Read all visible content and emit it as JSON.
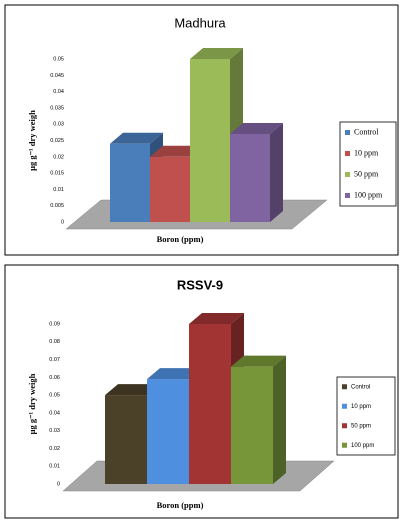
{
  "chart_data": [
    {
      "type": "bar3d",
      "title": "Madhura",
      "x_label": "Boron (ppm)",
      "y_label": "μg g⁻¹ dry weigh",
      "categories": [
        "Control",
        "10 ppm",
        "50 ppm",
        "100 ppm"
      ],
      "values": [
        0.024,
        0.02,
        0.05,
        0.027
      ],
      "colors": [
        "#4a7ebb",
        "#c0504d",
        "#9bbb59",
        "#8064a2"
      ],
      "ylim": [
        0,
        0.05
      ],
      "yticks": [
        0,
        0.005,
        0.01,
        0.015,
        0.02,
        0.025,
        0.03,
        0.035,
        0.04,
        0.045,
        0.05
      ]
    },
    {
      "type": "bar3d",
      "title": "RSSV-9",
      "x_label": "Boron (ppm)",
      "y_label": "μg g⁻¹ dry weigh",
      "categories": [
        "Control",
        "10 ppm",
        "50 ppm",
        "100 ppm"
      ],
      "values": [
        0.05,
        0.059,
        0.09,
        0.066
      ],
      "colors": [
        "#4b4128",
        "#4f8fdf",
        "#a23434",
        "#77963a"
      ],
      "ylim": [
        0,
        0.09
      ],
      "yticks": [
        0,
        0.01,
        0.02,
        0.03,
        0.04,
        0.05,
        0.06,
        0.07,
        0.08,
        0.09
      ]
    }
  ]
}
